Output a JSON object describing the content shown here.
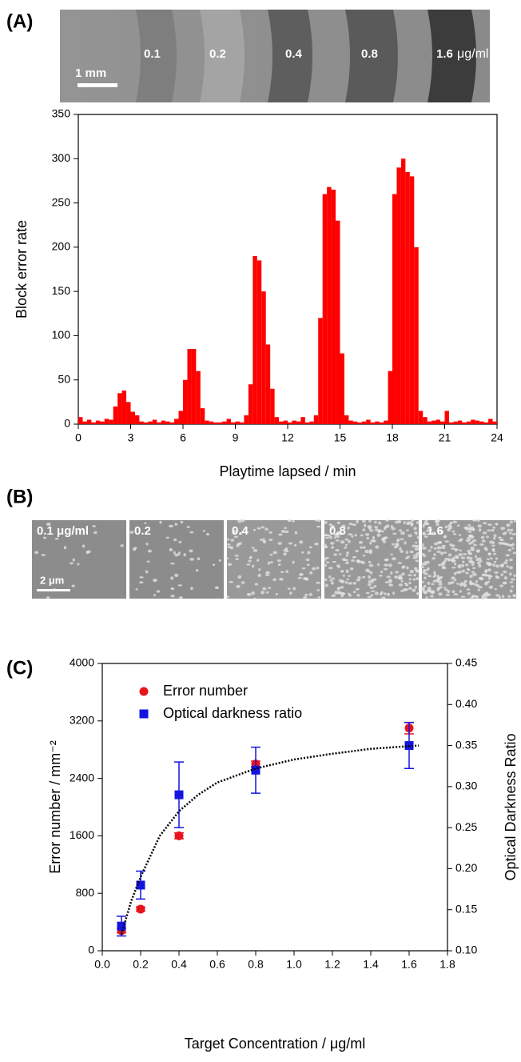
{
  "panel_labels": [
    "(A)",
    "(B)",
    "(C)"
  ],
  "strip": {
    "labels": [
      "0.1",
      "0.2",
      "0.4",
      "0.8",
      "1.6"
    ],
    "unit": "μg/ml",
    "scale_bar": "1 mm"
  },
  "micrographs": {
    "labels": [
      "0.1 μg/ml",
      "0.2",
      "0.4",
      "0.8",
      "1.6"
    ],
    "scale_bar": "2 μm"
  },
  "chart_data": [
    {
      "type": "histogram",
      "x_label": "Playtime lapsed / min",
      "y_label": "Block error rate",
      "color": "#ff0000",
      "bins": [
        0,
        0.25,
        0.5,
        0.75,
        1,
        1.25,
        1.5,
        1.75,
        2,
        2.25,
        2.5,
        2.75,
        3,
        3.25,
        3.5,
        3.75,
        4,
        4.25,
        4.5,
        4.75,
        5,
        5.25,
        5.5,
        5.75,
        6,
        6.25,
        6.5,
        6.75,
        7,
        7.25,
        7.5,
        7.75,
        8,
        8.25,
        8.5,
        8.75,
        9,
        9.25,
        9.5,
        9.75,
        10,
        10.25,
        10.5,
        10.75,
        11,
        11.25,
        11.5,
        11.75,
        12,
        12.25,
        12.5,
        12.75,
        13,
        13.25,
        13.5,
        13.75,
        14,
        14.25,
        14.5,
        14.75,
        15,
        15.25,
        15.5,
        15.75,
        16,
        16.25,
        16.5,
        16.75,
        17,
        17.25,
        17.5,
        17.75,
        18,
        18.25,
        18.5,
        18.75,
        19,
        19.25,
        19.5,
        19.75,
        20,
        20.25,
        20.5,
        20.75,
        21,
        21.25,
        21.5,
        21.75,
        22,
        22.25,
        22.5,
        22.75,
        23,
        23.25,
        23.5,
        23.75,
        24
      ],
      "values": [
        8,
        3,
        5,
        2,
        4,
        3,
        6,
        5,
        20,
        35,
        38,
        25,
        14,
        10,
        3,
        2,
        3,
        5,
        2,
        4,
        3,
        2,
        6,
        15,
        50,
        85,
        85,
        60,
        18,
        4,
        3,
        2,
        2,
        3,
        6,
        2,
        3,
        2,
        10,
        45,
        190,
        185,
        150,
        90,
        40,
        8,
        3,
        4,
        2,
        4,
        3,
        8,
        2,
        3,
        10,
        120,
        260,
        268,
        265,
        230,
        80,
        10,
        4,
        3,
        2,
        3,
        5,
        2,
        3,
        2,
        4,
        60,
        260,
        290,
        300,
        285,
        280,
        200,
        15,
        8,
        3,
        4,
        5,
        3,
        15,
        2,
        3,
        4,
        2,
        3,
        5,
        4,
        3,
        2,
        6,
        3
      ],
      "xlim": [
        0,
        24
      ],
      "xticks": [
        0,
        3,
        6,
        9,
        12,
        15,
        18,
        21,
        24
      ],
      "ylim": [
        0,
        350
      ],
      "yticks": [
        0,
        50,
        100,
        150,
        200,
        250,
        300,
        350
      ]
    },
    {
      "type": "scatter",
      "x_label": "Target Concentration / μg/ml",
      "y_label": "Error number / mm⁻²",
      "y2_label": "Optical Darkness Ratio",
      "x": [
        0.1,
        0.2,
        0.4,
        0.8,
        1.6
      ],
      "series": [
        {
          "name": "Error number",
          "color": "#e8141c",
          "marker": "circle",
          "values": [
            280,
            580,
            1600,
            2600,
            3100
          ],
          "errors": [
            30,
            30,
            40,
            40,
            80
          ]
        },
        {
          "name": "Optical darkness ratio",
          "color": "#1414e0",
          "marker": "square",
          "axis": "y2",
          "values": [
            0.13,
            0.18,
            0.29,
            0.32,
            0.35
          ],
          "errors": [
            0.012,
            0.017,
            0.04,
            0.028,
            0.028
          ]
        },
        {
          "color": "#000000",
          "style": "dotted",
          "axis": "y2",
          "x": [
            0.1,
            0.15,
            0.2,
            0.3,
            0.4,
            0.5,
            0.6,
            0.8,
            1.0,
            1.2,
            1.4,
            1.65
          ],
          "values": [
            0.12,
            0.16,
            0.19,
            0.24,
            0.27,
            0.29,
            0.305,
            0.322,
            0.333,
            0.34,
            0.346,
            0.35
          ]
        }
      ],
      "xlim": [
        0,
        1.8
      ],
      "xticks": [
        {
          "value": 0,
          "label": "0.0"
        },
        0.2,
        0.4,
        0.6,
        0.8,
        {
          "value": 1,
          "label": "1.0"
        },
        1.2,
        1.4,
        1.6,
        1.8
      ],
      "ylim": [
        0,
        4000
      ],
      "yticks": [
        0,
        800,
        1600,
        2400,
        3200,
        4000
      ],
      "y2lim": [
        0.1,
        0.45
      ],
      "y2ticks": [
        {
          "value": 0.1,
          "label": "0.10"
        },
        0.15,
        {
          "value": 0.2,
          "label": "0.20"
        },
        0.25,
        {
          "value": 0.3,
          "label": "0.30"
        },
        0.35,
        {
          "value": 0.4,
          "label": "0.40"
        },
        0.45
      ],
      "legend": "upper-left"
    }
  ]
}
